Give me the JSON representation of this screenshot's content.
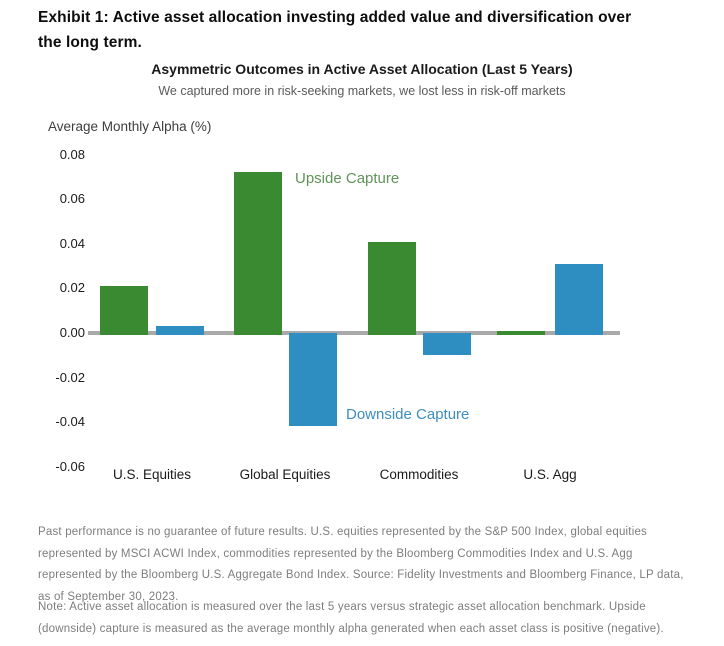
{
  "page": {
    "exhibit_title": "Exhibit 1: Active asset allocation investing added value and diversification over the long term.",
    "footnote_source": "Past performance is no guarantee of future results. U.S. equities represented by the S&P 500 Index, global equities represented by MSCI ACWI Index, commodities represented by the Bloomberg Commodities Index and U.S. Agg represented by the Bloomberg U.S. Aggregate Bond Index. Source: Fidelity Investments and Bloomberg Finance, LP data, as of September 30, 2023.",
    "footnote_note": "Note: Active asset allocation is measured over the last 5 years versus strategic asset allocation benchmark. Upside (downside) capture is measured as the average monthly alpha generated when each asset class is positive (negative)."
  },
  "chart_data": {
    "type": "bar",
    "title": "Asymmetric Outcomes in Active Asset Allocation (Last 5 Years)",
    "subtitle": "We captured more in risk-seeking markets, we lost less in risk-off markets",
    "ylabel": "Average Monthly Alpha (%)",
    "xlabel": "",
    "categories": [
      "U.S. Equities",
      "Global Equities",
      "Commodities",
      "U.S. Agg"
    ],
    "series": [
      {
        "name": "Upside Capture",
        "color": "#3a8a31",
        "label_color": "#5f9358",
        "values": [
          0.021,
          0.072,
          0.041,
          0.001
        ]
      },
      {
        "name": "Downside Capture",
        "color": "#2e8dc1",
        "label_color": "#3e8dbd",
        "values": [
          0.003,
          -0.041,
          -0.009,
          0.031
        ]
      }
    ],
    "ylim": [
      -0.06,
      0.08
    ],
    "ytick_step": 0.02,
    "ytick_labels": [
      "0.08",
      "0.06",
      "0.04",
      "0.02",
      "0.00",
      "-0.02",
      "-0.04",
      "-0.06"
    ],
    "grid": false,
    "legend": "in-chart text annotations near Global Equities bars",
    "zero_axis_color": "#a9a9a9"
  }
}
